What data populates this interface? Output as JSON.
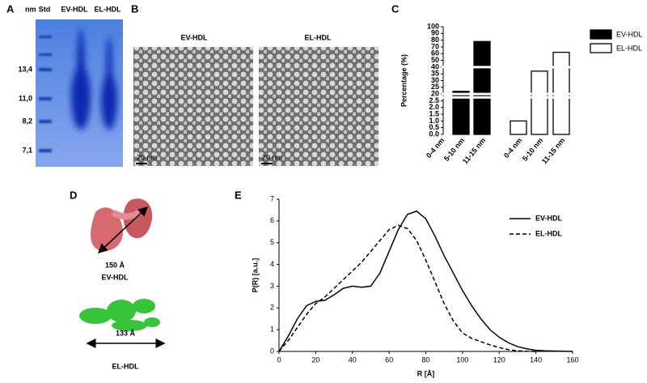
{
  "panel_labels": [
    "A",
    "B",
    "C",
    "D",
    "E"
  ],
  "gel": {
    "unit_label": "nm",
    "lanes": [
      "Std",
      "EV-HDL",
      "EL-HDL"
    ],
    "markers": [
      "13,4",
      "11,0",
      "8,2",
      "7,1"
    ]
  },
  "micrographs": {
    "titles": [
      "EV-HDL",
      "EL-HDL"
    ],
    "scale_bars": [
      "20 nm",
      "20 nm"
    ]
  },
  "models": {
    "labels": [
      "150 Å",
      "EV-HDL",
      "133 Å",
      "EL-HDL"
    ]
  },
  "chart_data": [
    {
      "type": "bar",
      "ylabel": "Percentage (%)",
      "categories": [
        "0-4 nm",
        "5-10 nm",
        "11-15 nm"
      ],
      "series": [
        {
          "name": "EV-HDL",
          "color": "#000000",
          "values": [
            0,
            22,
            78
          ]
        },
        {
          "name": "EL-HDL",
          "color": "#ffffff",
          "values": [
            1.0,
            37,
            62
          ]
        }
      ],
      "yticks": [
        {
          "value": 0,
          "label": "0.0"
        },
        {
          "value": 0.5,
          "label": "0.5"
        },
        {
          "value": 1,
          "label": "1.0"
        },
        {
          "value": 1.5,
          "label": "1.5"
        },
        {
          "value": 2,
          "label": "2.0"
        },
        {
          "value": 2.5,
          "label": "2.5"
        },
        20,
        25,
        30,
        35,
        40,
        50,
        60,
        70,
        80,
        90,
        100
      ],
      "ylim": [
        0,
        100
      ],
      "legend": "right"
    },
    {
      "type": "line",
      "xlabel": "R [Å]",
      "ylabel": "P(R) [a.u.]",
      "x": [
        0,
        5,
        10,
        15,
        20,
        25,
        30,
        35,
        40,
        45,
        50,
        55,
        60,
        65,
        70,
        75,
        80,
        85,
        90,
        95,
        100,
        105,
        110,
        115,
        120,
        125,
        130,
        135,
        140,
        145,
        150,
        155,
        160
      ],
      "series": [
        {
          "name": "EV-HDL",
          "color": "#000000",
          "linestyle": "solid",
          "values": [
            0,
            0.7,
            1.5,
            2.1,
            2.3,
            2.35,
            2.6,
            2.9,
            3.0,
            2.95,
            3.0,
            3.6,
            4.6,
            5.6,
            6.3,
            6.45,
            6.1,
            5.3,
            4.4,
            3.6,
            2.8,
            2.1,
            1.5,
            1.0,
            0.65,
            0.4,
            0.22,
            0.12,
            0.05,
            0.03,
            0.02,
            0.01,
            0
          ]
        },
        {
          "name": "EL-HDL",
          "color": "#000000",
          "linestyle": "dashed",
          "values": [
            0,
            0.5,
            1.1,
            1.7,
            2.2,
            2.5,
            2.9,
            3.3,
            3.7,
            4.1,
            4.6,
            5.1,
            5.6,
            5.8,
            5.65,
            5.1,
            4.2,
            3.2,
            2.2,
            1.4,
            0.85,
            0.6,
            0.45,
            0.3,
            0.18,
            0.08,
            0.03,
            0.01,
            0,
            null,
            null,
            null,
            null
          ]
        }
      ],
      "xlim": [
        0,
        160
      ],
      "xticks": [
        0,
        20,
        40,
        60,
        80,
        100,
        120,
        140,
        160
      ],
      "ylim": [
        0,
        7
      ],
      "yticks": [
        0,
        1,
        2,
        3,
        4,
        5,
        6,
        7
      ],
      "legend": "upper right"
    }
  ]
}
